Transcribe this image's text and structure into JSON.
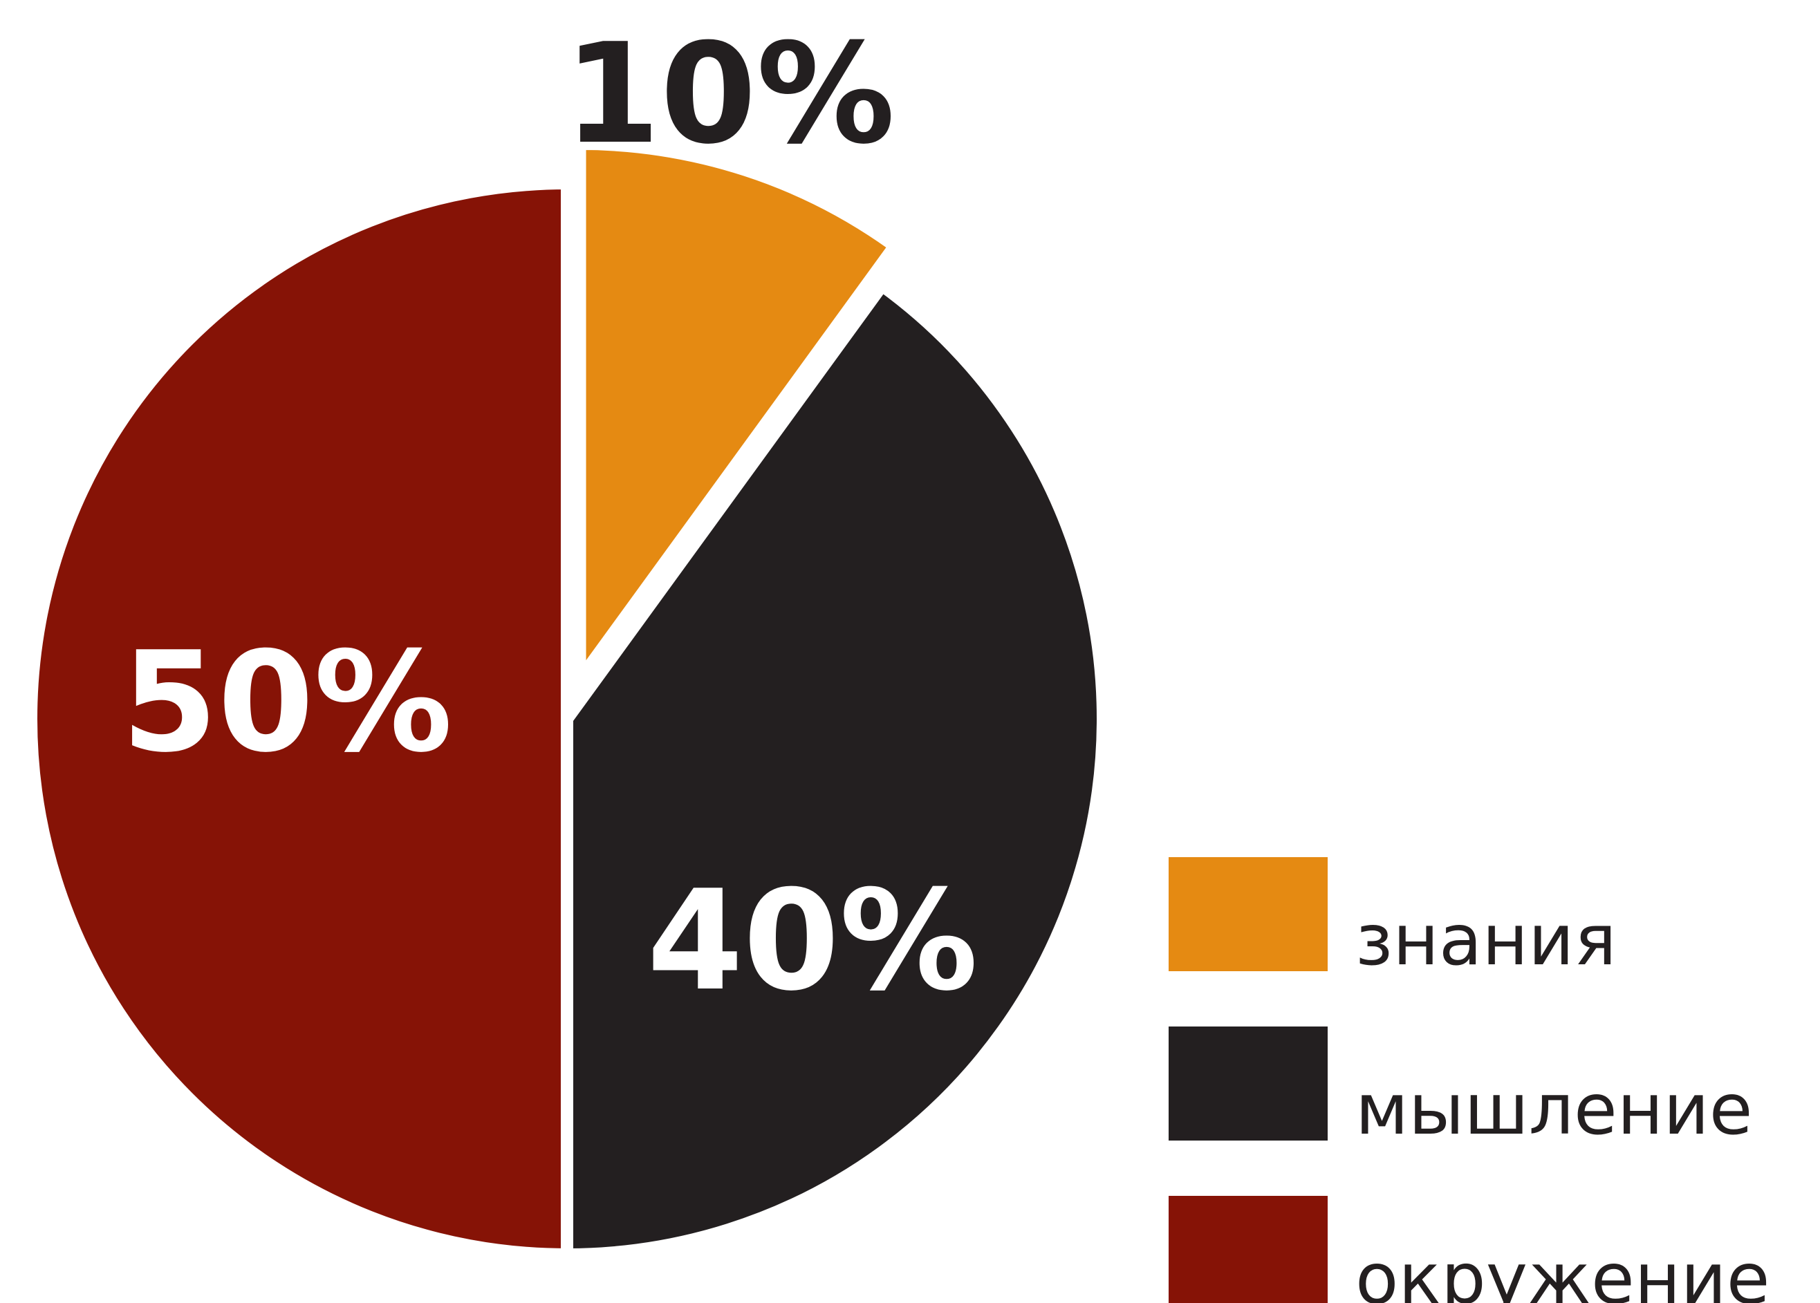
{
  "chart_data": {
    "type": "pie",
    "title": "",
    "slices": [
      {
        "label": "знания",
        "value": 10,
        "value_label": "10%",
        "color": "#e58a12"
      },
      {
        "label": "мышление",
        "value": 40,
        "value_label": "40%",
        "color": "#231f20"
      },
      {
        "label": "окружение",
        "value": 50,
        "value_label": "50%",
        "color": "#861306"
      }
    ],
    "start": "top",
    "direction": "clockwise",
    "exploded_slice": "знания",
    "legend_placement": "bottom-right",
    "value_label_colors": [
      "#231f20",
      "#ffffff",
      "#ffffff"
    ]
  }
}
